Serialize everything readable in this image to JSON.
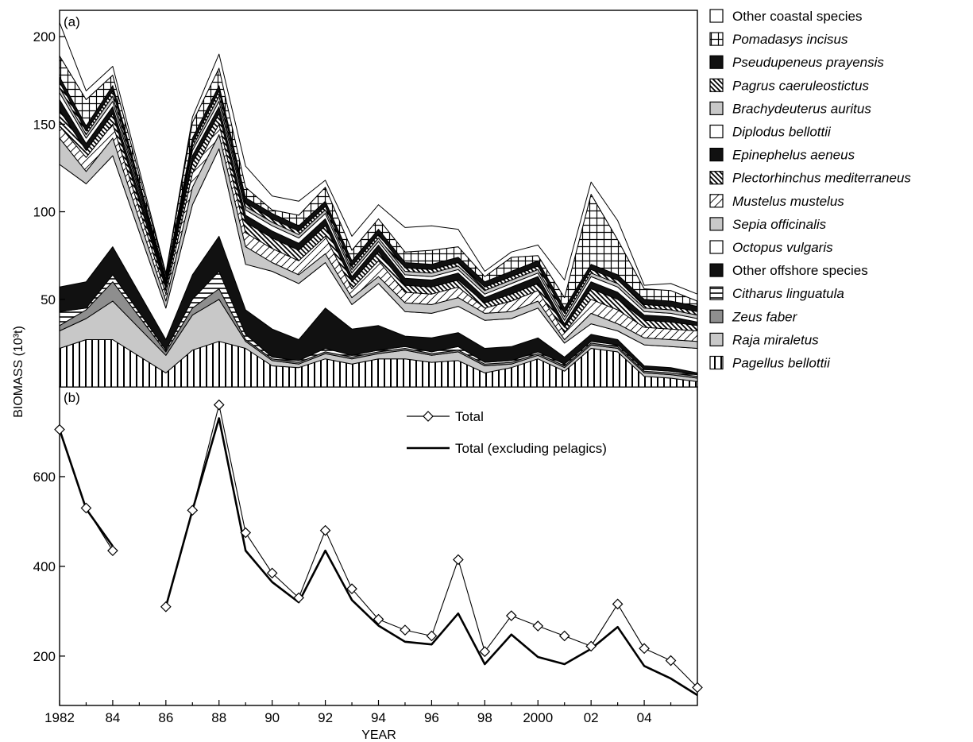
{
  "chart_data": [
    {
      "panel": "(a)",
      "type": "area",
      "stacked": true,
      "ylabel": "BIOMASS (10³t)",
      "ylim": [
        0,
        215
      ],
      "yticks": [
        50,
        100,
        150,
        200
      ],
      "legend_position": "right",
      "x": [
        1982,
        1983,
        1984,
        1986,
        1987,
        1988,
        1989,
        1990,
        1991,
        1992,
        1993,
        1994,
        1995,
        1996,
        1997,
        1998,
        1999,
        2000,
        2001,
        2002,
        2003,
        2004,
        2005,
        2006
      ],
      "series": [
        {
          "name": "Pagellus bellottii",
          "pattern": "vlines",
          "values": [
            22,
            27,
            27,
            8,
            21,
            26,
            22,
            12,
            11,
            16,
            13,
            16,
            16,
            14,
            15,
            8,
            11,
            16,
            9,
            22,
            20,
            6,
            5,
            3
          ]
        },
        {
          "name": "Raja miraletus",
          "pattern": "lightgray",
          "values": [
            10,
            12,
            22,
            10,
            20,
            24,
            4,
            3,
            2,
            3,
            3,
            3,
            5,
            4,
            5,
            4,
            2,
            2,
            2,
            2,
            2,
            2,
            2,
            2
          ]
        },
        {
          "name": "Zeus faber",
          "pattern": "midgray",
          "values": [
            3,
            5,
            11,
            2,
            4,
            6,
            1,
            1,
            1,
            1,
            1,
            1,
            1,
            1,
            1,
            1,
            1,
            1,
            1,
            1,
            1,
            1,
            1,
            1
          ]
        },
        {
          "name": "Citharus linguatula",
          "pattern": "hlines",
          "values": [
            8,
            1,
            4,
            1,
            5,
            10,
            3,
            1,
            1,
            2,
            1,
            1,
            1,
            1,
            2,
            1,
            1,
            1,
            1,
            1,
            1,
            1,
            1,
            1
          ]
        },
        {
          "name": "Other offshore species",
          "pattern": "black",
          "values": [
            14,
            15,
            16,
            6,
            14,
            20,
            14,
            16,
            12,
            23,
            15,
            14,
            6,
            8,
            8,
            8,
            8,
            8,
            4,
            4,
            3,
            2,
            2,
            1
          ]
        },
        {
          "name": "Octopus vulgaris",
          "pattern": "white",
          "values": [
            70,
            56,
            52,
            18,
            40,
            50,
            26,
            33,
            32,
            26,
            14,
            24,
            14,
            14,
            15,
            16,
            16,
            17,
            8,
            6,
            5,
            12,
            12,
            14
          ]
        },
        {
          "name": "Sepia officinalis",
          "pattern": "lightgray",
          "values": [
            15,
            7,
            10,
            4,
            10,
            8,
            10,
            5,
            5,
            5,
            4,
            4,
            5,
            5,
            5,
            4,
            4,
            4,
            2,
            6,
            4,
            4,
            4,
            4
          ]
        },
        {
          "name": "Mustelus mustelus",
          "pattern": "diagthin",
          "values": [
            7,
            8,
            8,
            4,
            8,
            6,
            8,
            8,
            8,
            10,
            5,
            9,
            6,
            6,
            6,
            3,
            6,
            6,
            4,
            8,
            8,
            6,
            6,
            6
          ]
        },
        {
          "name": "Plectorhinchus mediterraneus",
          "pattern": "diagthick",
          "values": [
            9,
            4,
            6,
            3,
            6,
            6,
            6,
            6,
            6,
            6,
            4,
            5,
            4,
            4,
            4,
            3,
            4,
            4,
            3,
            6,
            6,
            4,
            4,
            3
          ]
        },
        {
          "name": "Epinephelus aeneus",
          "pattern": "black",
          "values": [
            6,
            4,
            4,
            2,
            4,
            4,
            4,
            4,
            4,
            4,
            3,
            4,
            4,
            4,
            4,
            3,
            4,
            4,
            2,
            4,
            4,
            3,
            3,
            2
          ]
        },
        {
          "name": "Diplodus bellottii",
          "pattern": "white",
          "values": [
            4,
            3,
            3,
            1,
            3,
            3,
            3,
            3,
            3,
            3,
            2,
            2,
            2,
            2,
            2,
            2,
            2,
            2,
            2,
            3,
            3,
            2,
            2,
            2
          ]
        },
        {
          "name": "Brachydeuterus auritus",
          "pattern": "lightgray",
          "values": [
            3,
            2,
            3,
            1,
            2,
            3,
            2,
            2,
            2,
            2,
            2,
            2,
            2,
            2,
            2,
            2,
            2,
            2,
            2,
            2,
            2,
            2,
            2,
            2
          ]
        },
        {
          "name": "Pagrus caeruleostictus",
          "pattern": "diagthick",
          "values": [
            3,
            2,
            3,
            1,
            2,
            3,
            2,
            2,
            2,
            2,
            2,
            2,
            2,
            2,
            2,
            2,
            2,
            2,
            2,
            2,
            2,
            2,
            2,
            2
          ]
        },
        {
          "name": "Pseudupeneus prayensis",
          "pattern": "black",
          "values": [
            3,
            3,
            3,
            1,
            3,
            3,
            3,
            3,
            3,
            3,
            3,
            3,
            3,
            3,
            3,
            3,
            3,
            3,
            3,
            3,
            3,
            3,
            3,
            3
          ]
        },
        {
          "name": "Pomadasys incisus",
          "pattern": "grid",
          "values": [
            12,
            15,
            6,
            2,
            9,
            10,
            6,
            2,
            6,
            8,
            6,
            6,
            6,
            8,
            6,
            3,
            8,
            3,
            6,
            40,
            20,
            6,
            6,
            3
          ]
        },
        {
          "name": "Other coastal species",
          "pattern": "white",
          "values": [
            19,
            5,
            5,
            1,
            3,
            8,
            12,
            8,
            8,
            4,
            8,
            8,
            14,
            14,
            10,
            3,
            3,
            6,
            10,
            7,
            11,
            2,
            4,
            4
          ]
        }
      ]
    },
    {
      "panel": "(b)",
      "type": "line",
      "xlabel": "YEAR",
      "ylim": [
        90,
        800
      ],
      "yticks": [
        200,
        400,
        600
      ],
      "xlim": [
        1982,
        2006
      ],
      "xticks": [
        1982,
        1984,
        1986,
        1988,
        1990,
        1992,
        1994,
        1996,
        1998,
        2000,
        2002,
        2004
      ],
      "xtick_labels": [
        "1982",
        "84",
        "86",
        "88",
        "90",
        "92",
        "94",
        "96",
        "98",
        "2000",
        "02",
        "04"
      ],
      "legend_position": "top-right",
      "series": [
        {
          "name": "Total",
          "marker": "diamond",
          "points": [
            [
              1982,
              705
            ],
            [
              1983,
              530
            ],
            [
              1984,
              435
            ],
            [
              1986,
              310
            ],
            [
              1987,
              525
            ],
            [
              1988,
              760
            ],
            [
              1989,
              475
            ],
            [
              1990,
              385
            ],
            [
              1991,
              330
            ],
            [
              1992,
              480
            ],
            [
              1993,
              350
            ],
            [
              1994,
              282
            ],
            [
              1995,
              258
            ],
            [
              1996,
              245
            ],
            [
              1997,
              415
            ],
            [
              1998,
              210
            ],
            [
              1999,
              290
            ],
            [
              2000,
              267
            ],
            [
              2001,
              245
            ],
            [
              2002,
              222
            ],
            [
              2003,
              316
            ],
            [
              2004,
              217
            ],
            [
              2005,
              190
            ],
            [
              2006,
              130
            ]
          ]
        },
        {
          "name": "Total (excluding pelagics)",
          "marker": "none",
          "points": [
            [
              1982,
              705
            ],
            [
              1983,
              528
            ],
            [
              1984,
              445
            ],
            [
              1986,
              310
            ],
            [
              1987,
              525
            ],
            [
              1988,
              730
            ],
            [
              1989,
              435
            ],
            [
              1990,
              365
            ],
            [
              1991,
              320
            ],
            [
              1992,
              435
            ],
            [
              1993,
              325
            ],
            [
              1994,
              268
            ],
            [
              1995,
              232
            ],
            [
              1996,
              226
            ],
            [
              1997,
              295
            ],
            [
              1998,
              182
            ],
            [
              1999,
              248
            ],
            [
              2000,
              198
            ],
            [
              2001,
              182
            ],
            [
              2002,
              216
            ],
            [
              2003,
              265
            ],
            [
              2004,
              178
            ],
            [
              2005,
              150
            ],
            [
              2006,
              113
            ]
          ]
        }
      ]
    }
  ]
}
